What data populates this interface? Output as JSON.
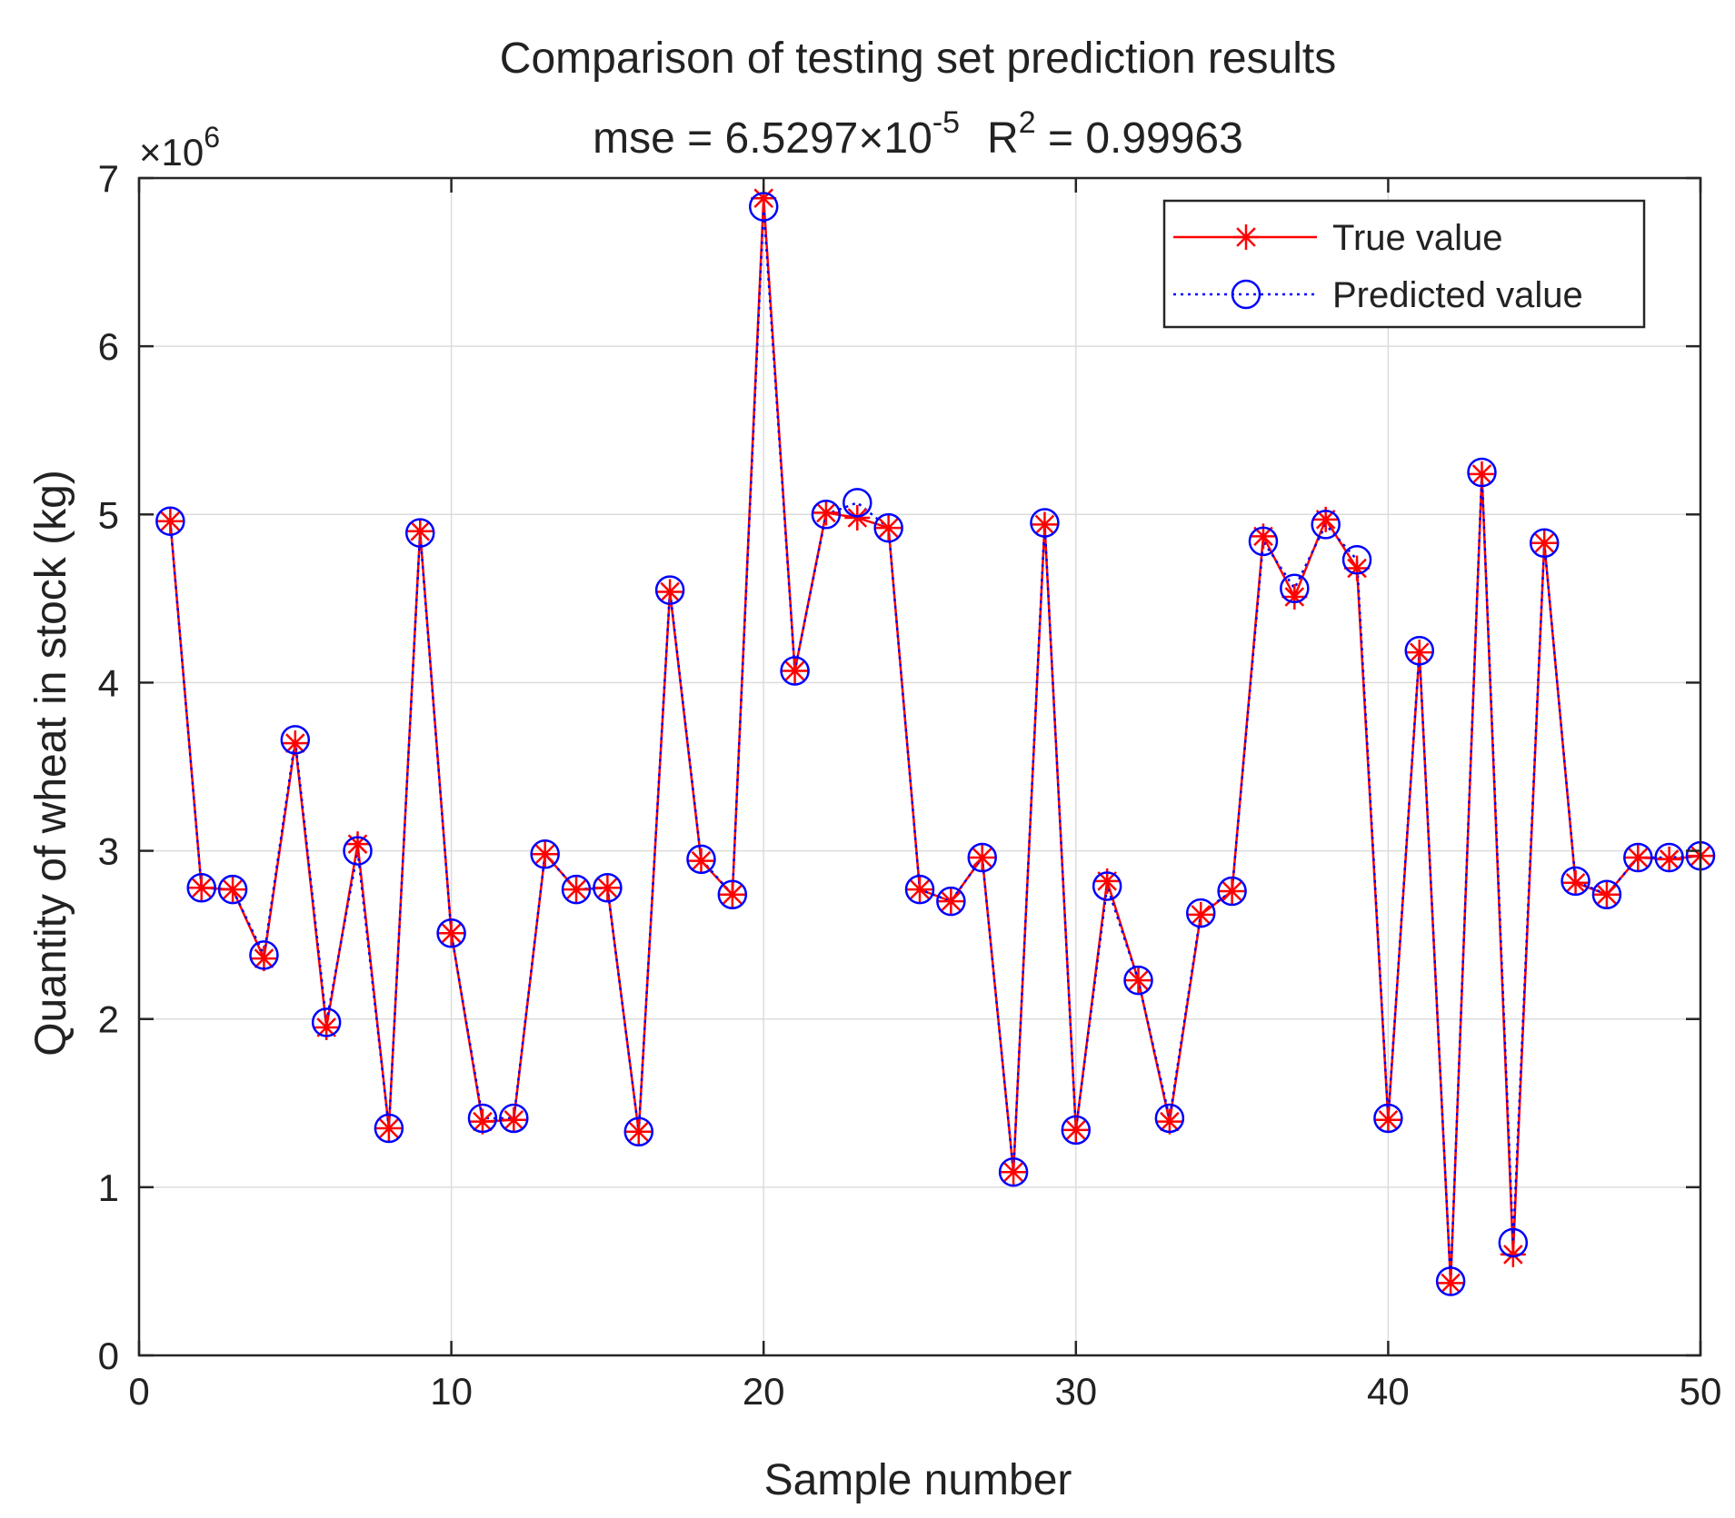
{
  "chart_data": {
    "type": "line",
    "title": "Comparison of testing set prediction results",
    "subtitle": {
      "mse_prefix": "mse = 6.5297×10",
      "mse_exponent": "-5",
      "r2_prefix": "R",
      "r2_exponent": "2",
      "r2_value": " = 0.99963"
    },
    "xlabel": "Sample number",
    "ylabel": "Quantity of wheat in stock (kg)",
    "y_scale_label": {
      "base": "×10",
      "exponent": "6"
    },
    "xlim": [
      0,
      50
    ],
    "ylim": [
      0,
      7
    ],
    "xticks": [
      0,
      10,
      20,
      30,
      40,
      50
    ],
    "yticks": [
      0,
      1,
      2,
      3,
      4,
      5,
      6,
      7
    ],
    "grid": true,
    "legend_position": "top-right",
    "x": [
      1,
      2,
      3,
      4,
      5,
      6,
      7,
      8,
      9,
      10,
      11,
      12,
      13,
      14,
      15,
      16,
      17,
      18,
      19,
      20,
      21,
      22,
      23,
      24,
      25,
      26,
      27,
      28,
      29,
      30,
      31,
      32,
      33,
      34,
      35,
      36,
      37,
      38,
      39,
      40,
      41,
      42,
      43,
      44,
      45,
      46,
      47,
      48,
      49,
      50
    ],
    "series": [
      {
        "name": "True value",
        "color": "#ff0000",
        "marker": "asterisk",
        "line_style": "solid",
        "values": [
          4.96,
          2.78,
          2.77,
          2.36,
          3.64,
          1.95,
          3.04,
          1.35,
          4.9,
          2.51,
          1.39,
          1.4,
          2.98,
          2.77,
          2.78,
          1.33,
          4.54,
          2.94,
          2.74,
          6.88,
          4.07,
          5.01,
          4.98,
          4.92,
          2.77,
          2.7,
          2.96,
          1.09,
          4.94,
          1.34,
          2.82,
          2.23,
          1.39,
          2.62,
          2.76,
          4.87,
          4.51,
          4.97,
          4.68,
          1.4,
          4.18,
          0.43,
          5.24,
          0.6,
          4.83,
          2.81,
          2.74,
          2.96,
          2.95,
          2.97
        ]
      },
      {
        "name": "Predicted value",
        "color": "#0000ff",
        "marker": "circle",
        "line_style": "dotted",
        "values": [
          4.96,
          2.78,
          2.77,
          2.38,
          3.66,
          1.98,
          3.0,
          1.35,
          4.89,
          2.51,
          1.41,
          1.41,
          2.98,
          2.77,
          2.78,
          1.33,
          4.55,
          2.95,
          2.74,
          6.83,
          4.07,
          5.0,
          5.07,
          4.92,
          2.77,
          2.7,
          2.96,
          1.09,
          4.95,
          1.34,
          2.79,
          2.23,
          1.41,
          2.63,
          2.76,
          4.84,
          4.56,
          4.94,
          4.73,
          1.41,
          4.19,
          0.44,
          5.25,
          0.67,
          4.83,
          2.82,
          2.74,
          2.96,
          2.96,
          2.97
        ]
      }
    ]
  }
}
